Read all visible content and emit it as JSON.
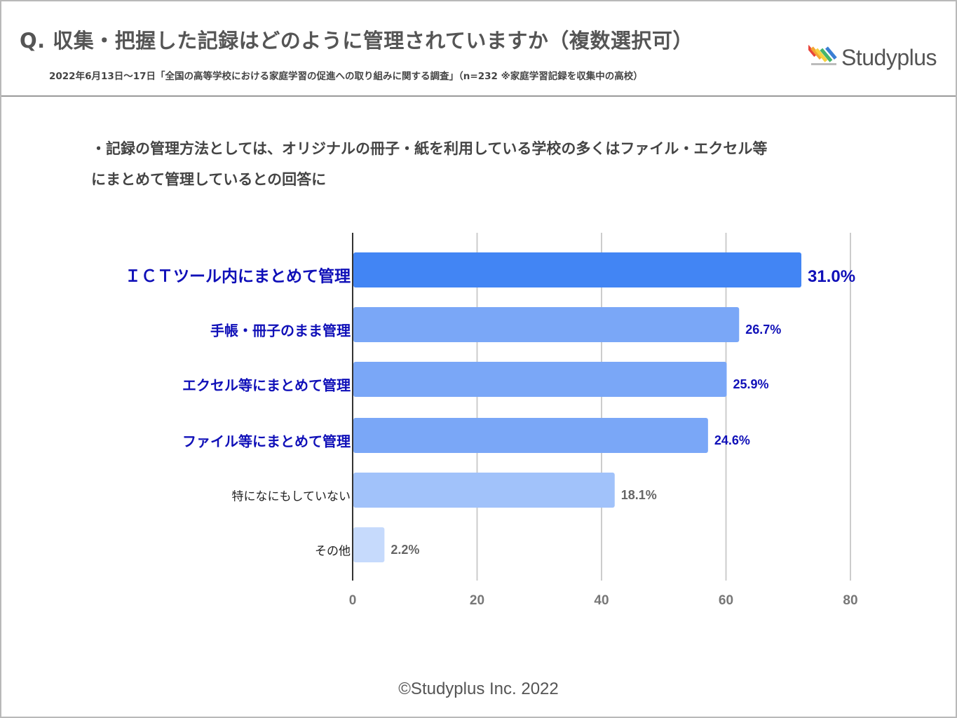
{
  "header": {
    "title": "Q. 収集・把握した記録はどのように管理されていますか（複数選択可）",
    "subtitle": "2022年6月13日～17日「全国の高等学校における家庭学習の促進への取り組みに関する調査」（n=232 ※家庭学習記録を収集中の高校）",
    "logo_text": "Studyplus",
    "logo_icon": "pencil-stripes-icon"
  },
  "note": {
    "line1": "・記録の管理方法としては、オリジナルの冊子・紙を利用している学校の多くはファイル・エクセル等",
    "line2": "にまとめて管理しているとの回答に"
  },
  "chart_data": {
    "type": "bar",
    "orientation": "horizontal",
    "categories": [
      "ＩＣＴツール内にまとめて管理",
      "手帳・冊子のまま管理",
      "エクセル等にまとめて管理",
      "ファイル等にまとめて管理",
      "特になにもしていない",
      "その他"
    ],
    "values": [
      72,
      62,
      60,
      57,
      42,
      5
    ],
    "data_labels": [
      "31.0%",
      "26.7%",
      "25.9%",
      "24.6%",
      "18.1%",
      "2.2%"
    ],
    "xlim": [
      0,
      80
    ],
    "xticks": [
      "0",
      "20",
      "40",
      "60",
      "80"
    ],
    "grid": true,
    "bar_colors": [
      "#4285f4",
      "#7aa7f7",
      "#7aa7f7",
      "#7aa7f7",
      "#a1c2fa",
      "#c6dafc"
    ],
    "label_colors": [
      "#1010b8",
      "#1010b8",
      "#1010b8",
      "#1010b8",
      "#222222",
      "#222222"
    ],
    "value_colors": [
      "#1010b8",
      "#1010b8",
      "#1010b8",
      "#1010b8",
      "#666666",
      "#666666"
    ]
  },
  "footer": {
    "copyright": "©Studyplus Inc. 2022"
  }
}
